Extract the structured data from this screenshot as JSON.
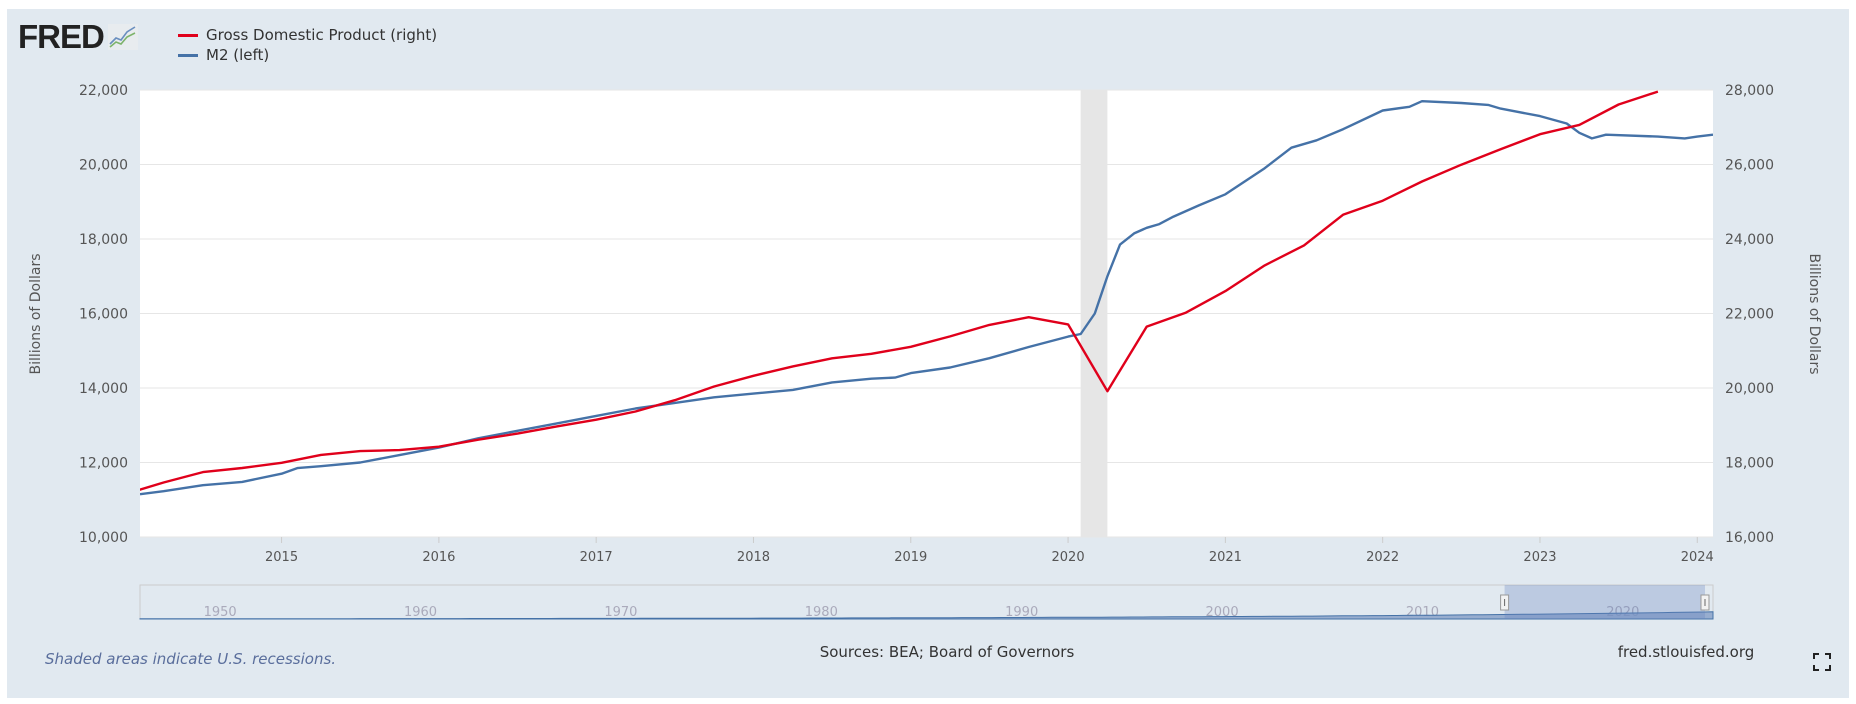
{
  "logo": {
    "text": "FRED",
    "icon": "chart-line-icon"
  },
  "footer": {
    "recession_note": "Shaded areas indicate U.S. recessions.",
    "sources": "Sources: BEA; Board of Governors",
    "site": "fred.stlouisfed.org",
    "fullscreen_icon": "fullscreen-icon"
  },
  "colors": {
    "gdp": "#e0001b",
    "m2": "#4572a7",
    "background": "#e1e9f0",
    "recession": "#e6e6e6"
  },
  "chart_data": {
    "type": "line",
    "legend_placement": "top-left",
    "grid": true,
    "xlim": [
      2014.1,
      2024.1
    ],
    "x_ticks": [
      "2015",
      "2016",
      "2017",
      "2018",
      "2019",
      "2020",
      "2021",
      "2022",
      "2023",
      "2024"
    ],
    "y_left": {
      "label": "Billions of Dollars",
      "ylim": [
        10000,
        22000
      ],
      "ticks": [
        "10,000",
        "12,000",
        "14,000",
        "16,000",
        "18,000",
        "20,000",
        "22,000"
      ]
    },
    "y_right": {
      "label": "Billions of Dollars",
      "ylim": [
        16000,
        28000
      ],
      "ticks": [
        "16,000",
        "18,000",
        "20,000",
        "22,000",
        "24,000",
        "26,000",
        "28,000"
      ]
    },
    "recessions": [
      [
        2020.08,
        2020.25
      ]
    ],
    "series": [
      {
        "name": "Gross Domestic Product (right)",
        "axis": "right",
        "x": [
          2014.0,
          2014.25,
          2014.5,
          2014.75,
          2015.0,
          2015.25,
          2015.5,
          2015.75,
          2016.0,
          2016.25,
          2016.5,
          2016.75,
          2017.0,
          2017.25,
          2017.5,
          2017.75,
          2018.0,
          2018.25,
          2018.5,
          2018.75,
          2019.0,
          2019.25,
          2019.5,
          2019.75,
          2020.0,
          2020.25,
          2020.5,
          2020.75,
          2021.0,
          2021.25,
          2021.5,
          2021.75,
          2022.0,
          2022.25,
          2022.5,
          2022.75,
          2023.0,
          2023.25,
          2023.5,
          2023.75
        ],
        "values": [
          17144,
          17462,
          17743,
          17852,
          17992,
          18203,
          18306,
          18333,
          18425,
          18611,
          18776,
          18968,
          19149,
          19369,
          19672,
          20040,
          20328,
          20580,
          20798,
          20917,
          21105,
          21384,
          21695,
          21902,
          21707,
          19913,
          21647,
          22024,
          22600,
          23292,
          23829,
          24654,
          25029,
          25544,
          25995,
          26408,
          26814,
          27064,
          27610,
          27957
        ]
      },
      {
        "name": "M2 (left)",
        "axis": "left",
        "x": [
          2014.1,
          2014.25,
          2014.5,
          2014.75,
          2015.0,
          2015.1,
          2015.25,
          2015.5,
          2015.75,
          2016.0,
          2016.25,
          2016.5,
          2016.75,
          2017.0,
          2017.25,
          2017.5,
          2017.75,
          2018.0,
          2018.25,
          2018.5,
          2018.75,
          2018.9,
          2019.0,
          2019.25,
          2019.5,
          2019.75,
          2020.0,
          2020.08,
          2020.17,
          2020.25,
          2020.33,
          2020.42,
          2020.5,
          2020.58,
          2020.67,
          2020.83,
          2021.0,
          2021.25,
          2021.42,
          2021.58,
          2021.75,
          2022.0,
          2022.17,
          2022.25,
          2022.5,
          2022.67,
          2022.75,
          2023.0,
          2023.17,
          2023.25,
          2023.33,
          2023.42,
          2023.75,
          2023.92,
          2024.0,
          2024.1
        ],
        "values": [
          11150,
          11230,
          11390,
          11480,
          11700,
          11850,
          11900,
          12000,
          12200,
          12400,
          12650,
          12850,
          13050,
          13250,
          13450,
          13600,
          13750,
          13850,
          13950,
          14150,
          14250,
          14280,
          14400,
          14550,
          14800,
          15100,
          15380,
          15450,
          16000,
          17000,
          17850,
          18150,
          18300,
          18400,
          18600,
          18900,
          19200,
          19900,
          20450,
          20650,
          20950,
          21450,
          21550,
          21700,
          21650,
          21600,
          21500,
          21300,
          21100,
          20850,
          20700,
          20800,
          20750,
          20700,
          20750,
          20800
        ]
      }
    ],
    "navigator": {
      "x_ticks": [
        "1950",
        "1960",
        "1970",
        "1980",
        "1990",
        "2000",
        "2010",
        "2020"
      ],
      "range": [
        1946,
        2024.5
      ],
      "selected": [
        2014.1,
        2024.1
      ]
    }
  }
}
